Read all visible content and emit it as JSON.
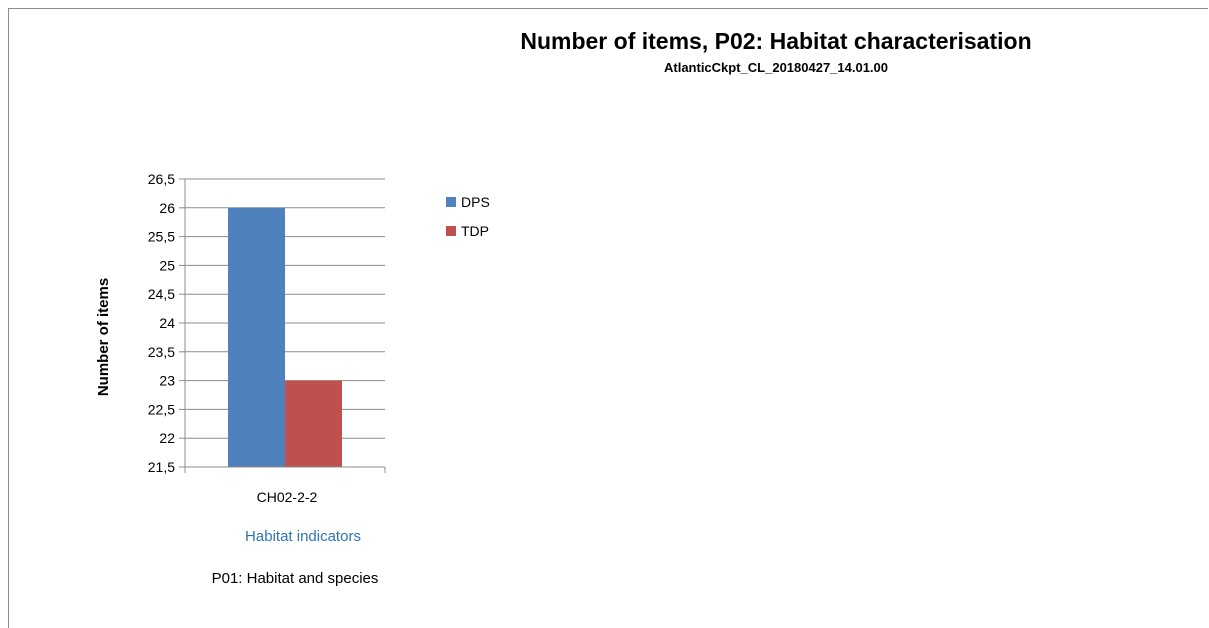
{
  "chart_data": {
    "type": "bar",
    "title": "Number of items, P02: Habitat characterisation",
    "subtitle": "AtlanticCkpt_CL_20180427_14.01.00",
    "xlabel": "Habitat indicators",
    "ylabel": "Number of items",
    "footnote": "P01: Habitat and species",
    "categories": [
      "CH02-2-2"
    ],
    "series": [
      {
        "name": "DPS",
        "values": [
          26
        ],
        "color": "#4f81bd"
      },
      {
        "name": "TDP",
        "values": [
          23
        ],
        "color": "#c0504d"
      }
    ],
    "ylim": [
      21.5,
      26.5
    ],
    "ytick_step": 0.5,
    "yticks": [
      "21,5",
      "22",
      "22,5",
      "23",
      "23,5",
      "24",
      "24,5",
      "25",
      "25,5",
      "26",
      "26,5"
    ],
    "grid": true,
    "legend": "right",
    "xlabel_color": "#2e75b6"
  }
}
